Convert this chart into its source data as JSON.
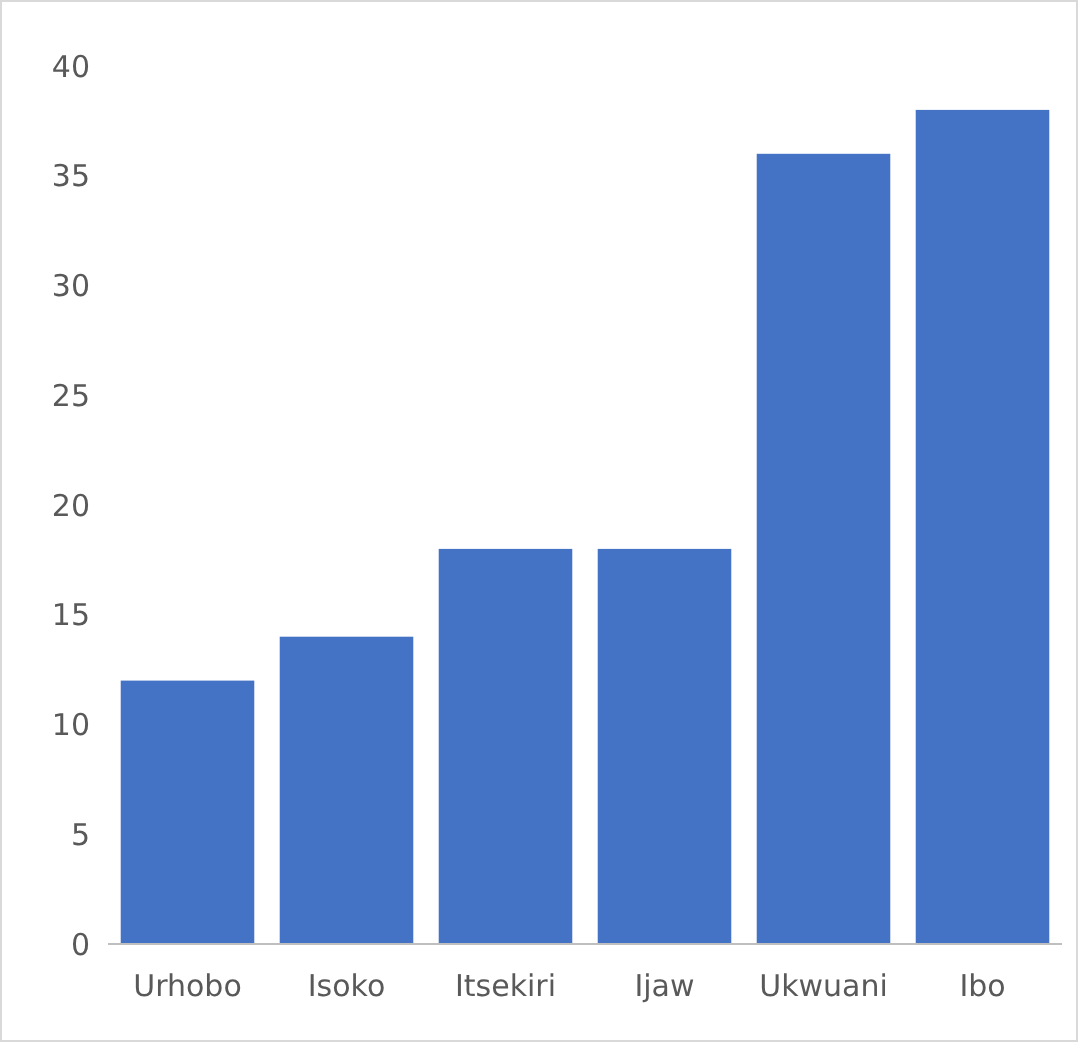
{
  "chart_data": {
    "type": "bar",
    "categories": [
      "Urhobo",
      "Isoko",
      "Itsekiri",
      "Ijaw",
      "Ukwuani",
      "Ibo"
    ],
    "values": [
      12,
      14,
      18,
      18,
      36,
      38
    ],
    "color": "#4472c4",
    "ylim": [
      0,
      40
    ],
    "yticks": [
      0,
      5,
      10,
      15,
      20,
      25,
      30,
      35,
      40
    ],
    "grid": false
  }
}
